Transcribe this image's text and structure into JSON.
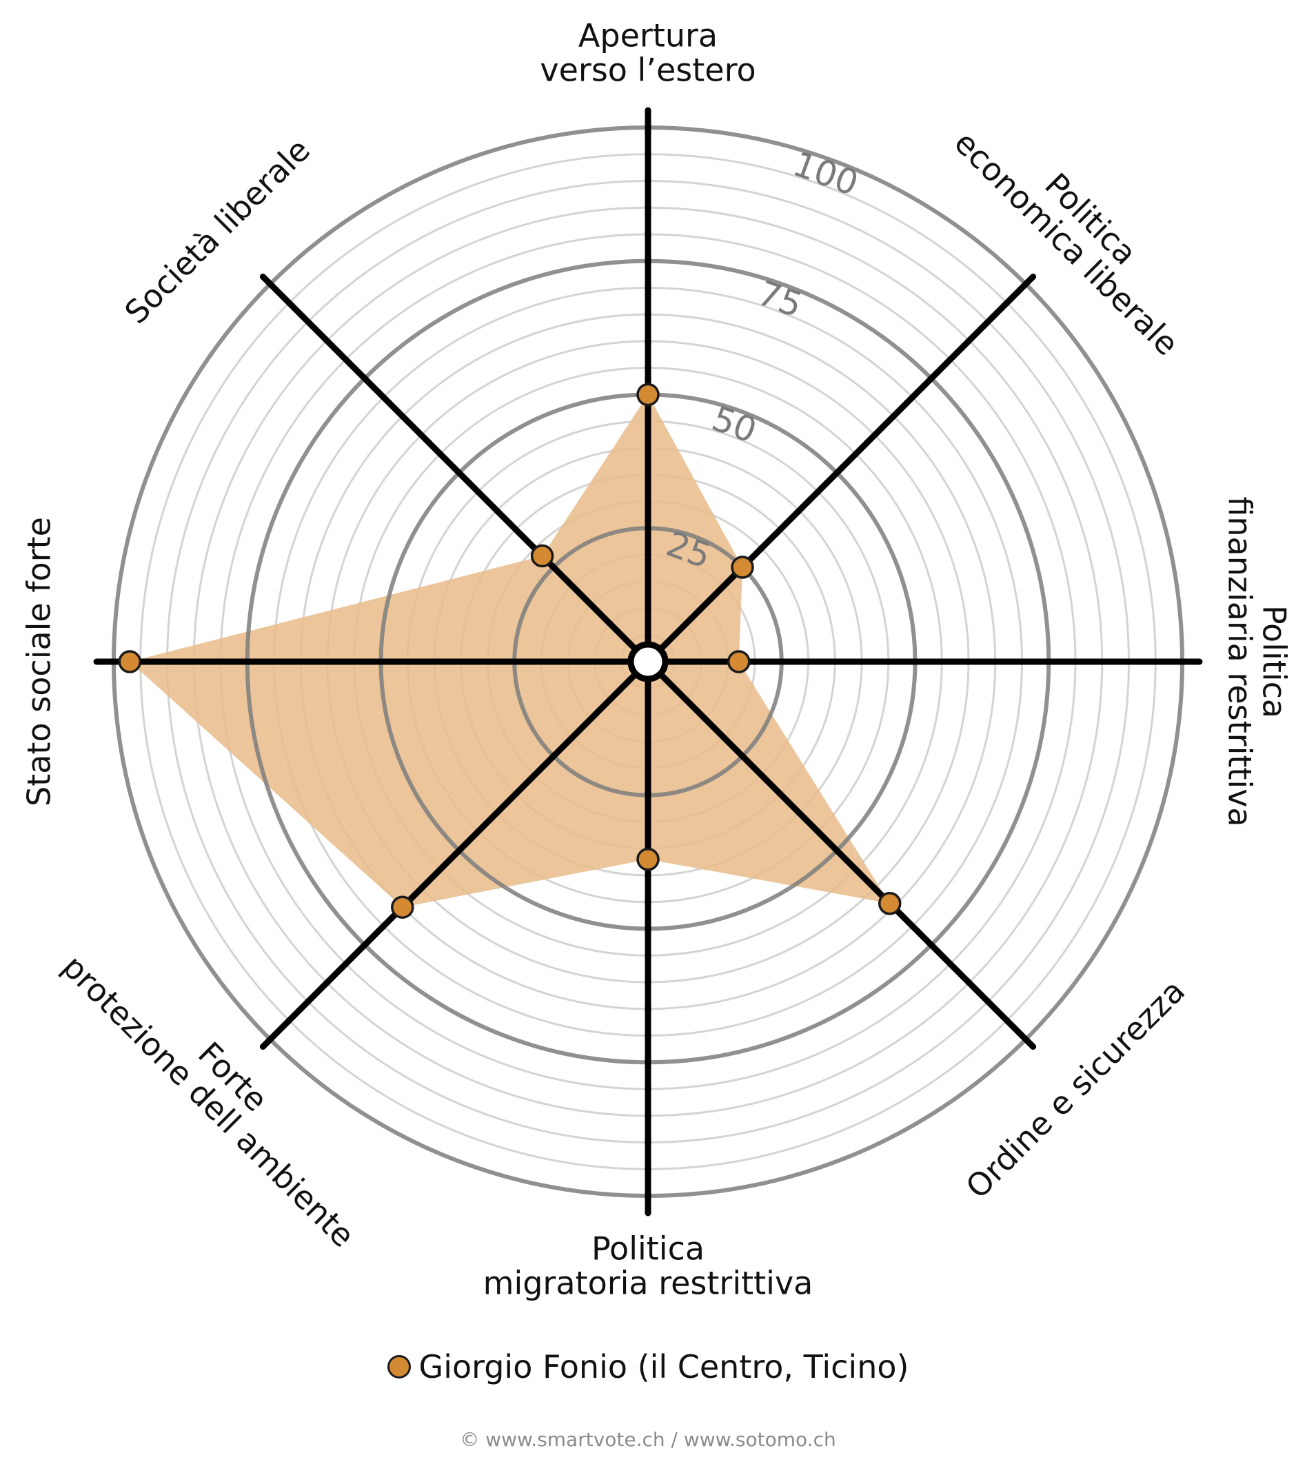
{
  "chart_data": {
    "type": "radar",
    "axes": [
      [
        "Apertura",
        "verso l’estero"
      ],
      [
        "Politica",
        "economica liberale"
      ],
      [
        "Politica",
        "finanziaria restrittiva"
      ],
      [
        "Ordine e sicurezza"
      ],
      [
        "Politica",
        "migratoria restrittiva"
      ],
      [
        "Forte",
        "protezione dell ambiente"
      ],
      [
        "Stato sociale forte"
      ],
      [
        "Società liberale"
      ]
    ],
    "series": [
      {
        "name": "Giorgio Fonio (il Centro, Ticino)",
        "values": [
          50,
          25,
          17,
          64,
          37,
          65,
          97,
          28
        ],
        "color": "#d38a33"
      }
    ],
    "rlim": [
      0,
      100
    ],
    "tick_values": [
      "25",
      "50",
      "75",
      "100"
    ],
    "fill_color": "#e9bb89",
    "legend_position": "bottom",
    "grid": true
  },
  "credits": "© www.smartvote.ch / www.sotomo.ch"
}
